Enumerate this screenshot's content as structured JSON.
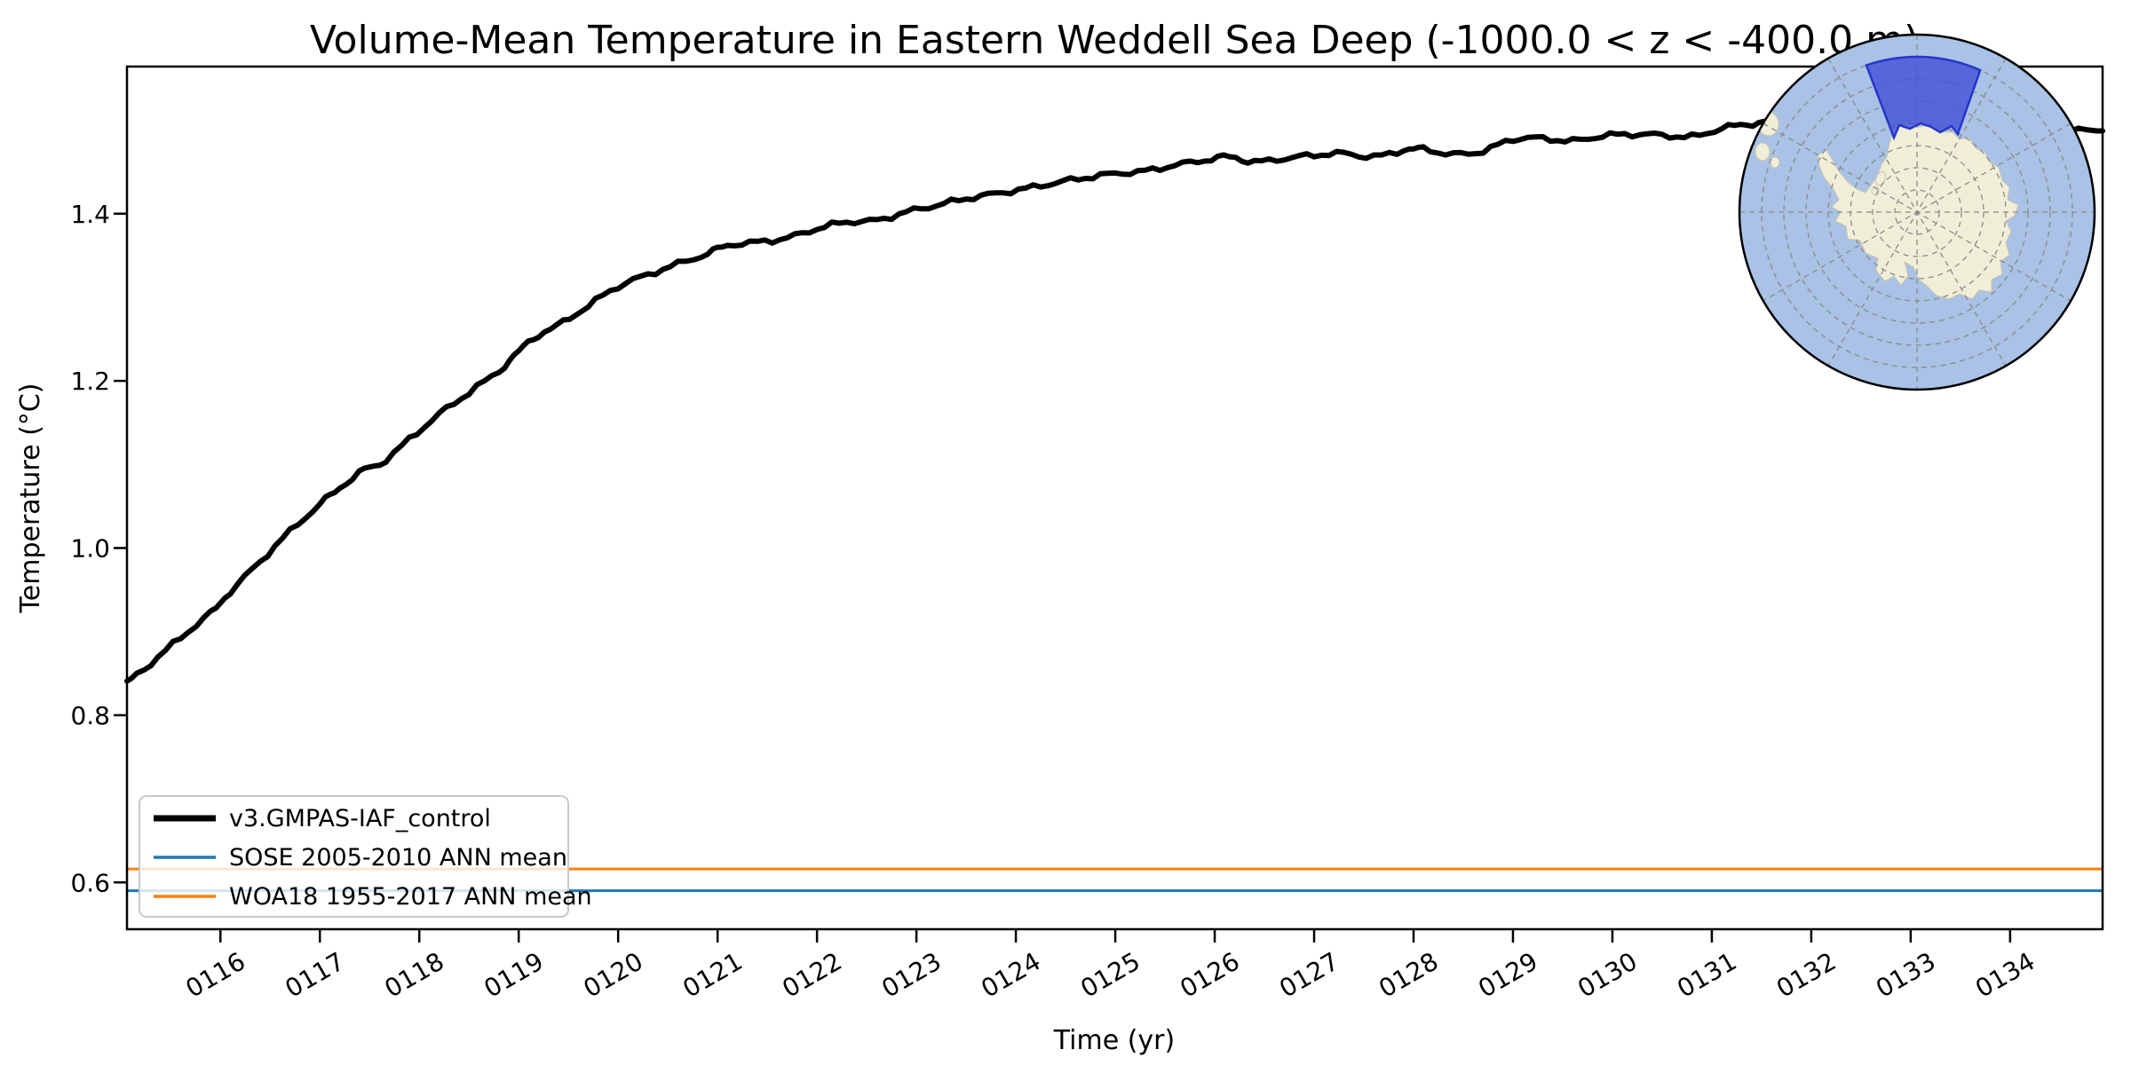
{
  "chart_data": {
    "type": "line",
    "title": "Volume-Mean Temperature in Eastern Weddell Sea Deep (-1000.0 < z < -400.0 m)",
    "xlabel": "Time (yr)",
    "ylabel": "Temperature (°C)",
    "xlim": [
      115.06,
      134.93
    ],
    "ylim": [
      0.544,
      1.576
    ],
    "grid": false,
    "legend_position": "lower left",
    "x_ticks": {
      "values": [
        116,
        117,
        118,
        119,
        120,
        121,
        122,
        123,
        124,
        125,
        126,
        127,
        128,
        129,
        130,
        131,
        132,
        133,
        134
      ],
      "labels": [
        "0116",
        "0117",
        "0118",
        "0119",
        "0120",
        "0121",
        "0122",
        "0123",
        "0124",
        "0125",
        "0126",
        "0127",
        "0128",
        "0129",
        "0130",
        "0131",
        "0132",
        "0133",
        "0134"
      ],
      "rotation_deg": 30
    },
    "y_ticks": {
      "values": [
        0.6,
        0.8,
        1.0,
        1.2,
        1.4
      ],
      "labels": [
        "0.6",
        "0.8",
        "1.0",
        "1.2",
        "1.4"
      ]
    },
    "series": [
      {
        "name": "v3.GMPAS-IAF_control",
        "type": "line",
        "color": "#000000",
        "line_width": 6,
        "x": [
          115.06,
          115.3,
          115.6,
          115.9,
          116.1,
          116.4,
          116.7,
          117.0,
          117.2,
          117.45,
          117.6,
          117.9,
          118.2,
          118.5,
          118.8,
          119.0,
          119.2,
          119.45,
          119.7,
          120.0,
          120.3,
          120.6,
          120.9,
          121.1,
          121.4,
          121.7,
          122.0,
          122.3,
          122.6,
          122.9,
          123.2,
          123.5,
          123.8,
          124.1,
          124.4,
          124.7,
          125.0,
          125.3,
          125.6,
          125.9,
          126.15,
          126.4,
          126.7,
          127.0,
          127.3,
          127.6,
          127.9,
          128.1,
          128.4,
          128.7,
          129.0,
          129.3,
          129.6,
          129.9,
          130.2,
          130.5,
          130.8,
          131.1,
          131.35,
          131.6,
          131.9,
          132.2,
          132.5,
          132.8,
          133.1,
          133.4,
          133.7,
          134.0,
          134.3,
          134.6,
          134.93
        ],
        "y": [
          0.839,
          0.862,
          0.893,
          0.922,
          0.948,
          0.984,
          1.02,
          1.052,
          1.072,
          1.094,
          1.1,
          1.13,
          1.16,
          1.186,
          1.212,
          1.235,
          1.255,
          1.27,
          1.29,
          1.313,
          1.327,
          1.34,
          1.352,
          1.362,
          1.366,
          1.371,
          1.382,
          1.39,
          1.392,
          1.402,
          1.41,
          1.418,
          1.424,
          1.43,
          1.437,
          1.443,
          1.448,
          1.451,
          1.458,
          1.464,
          1.468,
          1.462,
          1.466,
          1.47,
          1.472,
          1.468,
          1.476,
          1.477,
          1.471,
          1.475,
          1.489,
          1.49,
          1.487,
          1.493,
          1.495,
          1.494,
          1.492,
          1.502,
          1.507,
          1.51,
          1.512,
          1.508,
          1.51,
          1.512,
          1.513,
          1.508,
          1.503,
          1.499,
          1.497,
          1.5,
          1.499
        ]
      },
      {
        "name": "SOSE 2005-2010 ANN mean",
        "type": "hline",
        "color": "#1f77b4",
        "line_width": 3,
        "value": 0.59
      },
      {
        "name": "WOA18 1955-2017 ANN mean",
        "type": "hline",
        "color": "#ff7f0e",
        "line_width": 3,
        "value": 0.616
      }
    ]
  },
  "inset_map": {
    "ocean_color": "#a9c2e5",
    "land_color": "#f1eed8",
    "region_color": "#4050d8",
    "region_border_color": "#2636c8",
    "graticule_color": "#8a8a8a",
    "border_color": "#000000"
  }
}
